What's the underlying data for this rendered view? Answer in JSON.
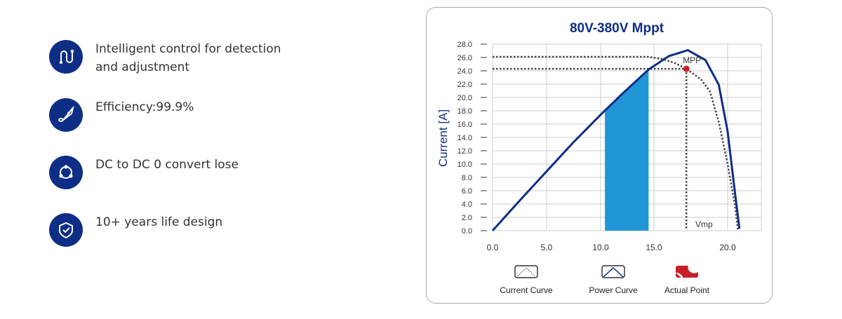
{
  "features": [
    {
      "icon": "circuit-icon",
      "text": "Intelligent control for detection and adjustment"
    },
    {
      "icon": "rocket-icon",
      "text": "Efficiency:99.9%"
    },
    {
      "icon": "network-icon",
      "text": "DC to DC 0 convert lose"
    },
    {
      "icon": "shield-check-icon",
      "text": "10+ years life design"
    }
  ],
  "chart_data": {
    "type": "line",
    "title": "80V-380V  Mppt",
    "ylabel": "Current [A]",
    "xlabel": "",
    "ylim": [
      0,
      28
    ],
    "xlim": [
      0,
      21
    ],
    "yticks": [
      "0.0",
      "2.0",
      "4.0",
      "6.0",
      "8.0",
      "10.0",
      "12.0",
      "14.0",
      "16.0",
      "18.0",
      "20.0",
      "22.0",
      "24.0",
      "26.0",
      "28.0"
    ],
    "xticks": [
      "0.0",
      "5.0",
      "10.0",
      "15.0",
      "20.0"
    ],
    "grid": true,
    "series": [
      {
        "name": "Power Curve",
        "style": "solid",
        "color": "#0e2e86",
        "x": [
          0,
          2.5,
          5,
          7.5,
          10,
          12,
          14.5,
          16,
          17.3,
          18.5,
          19.4,
          20,
          20.4,
          20.8
        ],
        "y": [
          0,
          4.5,
          8.9,
          13.3,
          17.4,
          20.5,
          24.2,
          26.2,
          27.1,
          25.6,
          21.9,
          14.9,
          7.5,
          0.3
        ]
      },
      {
        "name": "Current  Curve",
        "style": "dotted",
        "color": "#444444",
        "x": [
          0,
          14.5,
          15.5,
          16.5,
          17.2,
          18.2,
          18.8,
          19.4,
          20,
          20.5,
          20.7
        ],
        "y": [
          26.1,
          26.1,
          25.8,
          25.1,
          24.3,
          22.7,
          20.9,
          16.3,
          10,
          3.7,
          0
        ]
      }
    ],
    "shaded_region": {
      "x": [
        10.4,
        14.5
      ],
      "color": "#2196d6"
    },
    "mpp": {
      "label": "MPP",
      "x": 17.2,
      "y": 24.3,
      "color": "#c8202a",
      "ref_current": 26.1
    },
    "vmp_label": "Vmp",
    "legend": [
      "Current  Curve",
      "Power Curve",
      "Actual Point"
    ],
    "legend_placement": "bottom"
  }
}
